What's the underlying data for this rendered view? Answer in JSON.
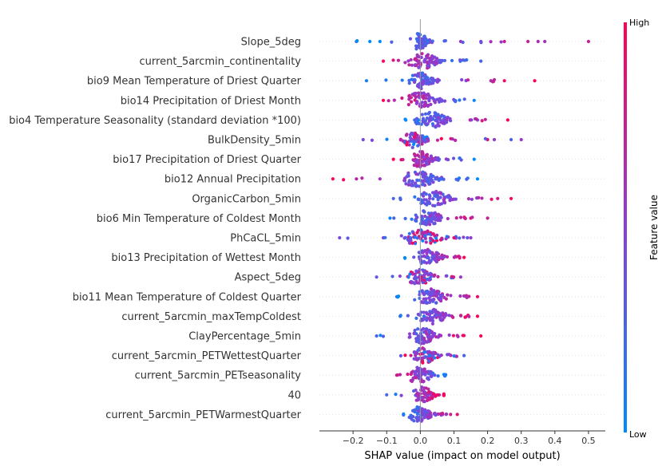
{
  "chart_data": {
    "type": "scatter",
    "subtype": "shap-beeswarm",
    "xlabel": "SHAP value (impact on model output)",
    "xlim": [
      -0.3,
      0.55
    ],
    "xticks": [
      -0.2,
      -0.1,
      0.0,
      0.1,
      0.2,
      0.3,
      0.4,
      0.5
    ],
    "xtick_labels": [
      "−0.2",
      "−0.1",
      "0.0",
      "0.1",
      "0.2",
      "0.3",
      "0.4",
      "0.5"
    ],
    "features": [
      {
        "name": "Slope_5deg",
        "left": -0.19,
        "right": 0.5,
        "core": [
          -0.04,
          0.05
        ],
        "tail_right": [
          0.12,
          0.18,
          0.25,
          0.32,
          0.35,
          0.37,
          0.5
        ],
        "tail_left": [
          -0.19,
          -0.15,
          -0.12
        ],
        "color_trend": "high-right"
      },
      {
        "name": "current_5arcmin_continentality",
        "left": -0.11,
        "right": 0.18,
        "core": [
          -0.06,
          0.09
        ],
        "tail_right": [
          0.18
        ],
        "tail_left": [
          -0.11
        ],
        "color_trend": "high-left"
      },
      {
        "name": "bio9 Mean Temperature of Driest Quarter",
        "left": -0.16,
        "right": 0.34,
        "core": [
          -0.05,
          0.07
        ],
        "tail_right": [
          0.21,
          0.25,
          0.34
        ],
        "tail_left": [
          -0.16
        ],
        "color_trend": "high-right"
      },
      {
        "name": "bio14 Precipitation of Driest Month",
        "left": -0.11,
        "right": 0.16,
        "core": [
          -0.07,
          0.09
        ],
        "tail_right": [
          0.16
        ],
        "tail_left": [
          -0.11
        ],
        "color_trend": "high-left"
      },
      {
        "name": "bio4 Temperature Seasonality (standard deviation *100)",
        "left": -0.05,
        "right": 0.26,
        "core": [
          -0.04,
          0.12
        ],
        "tail_right": [
          0.17,
          0.26
        ],
        "tail_left": [],
        "color_trend": "high-right"
      },
      {
        "name": "BulkDensity_5min",
        "left": -0.17,
        "right": 0.3,
        "core": [
          -0.07,
          0.05
        ],
        "tail_right": [
          0.2,
          0.22,
          0.27,
          0.3
        ],
        "tail_left": [
          -0.17
        ],
        "color_trend": "mixed"
      },
      {
        "name": "bio17 Precipitation of Driest Quarter",
        "left": -0.08,
        "right": 0.16,
        "core": [
          -0.05,
          0.07
        ],
        "tail_right": [
          0.16
        ],
        "tail_left": [
          -0.08
        ],
        "color_trend": "high-left"
      },
      {
        "name": "bio12 Annual Precipitation",
        "left": -0.26,
        "right": 0.17,
        "core": [
          -0.09,
          0.1
        ],
        "tail_right": [
          0.17
        ],
        "tail_left": [
          -0.26,
          -0.19,
          -0.12
        ],
        "color_trend": "high-left"
      },
      {
        "name": "OrganicCarbon_5min",
        "left": -0.08,
        "right": 0.27,
        "core": [
          -0.04,
          0.13
        ],
        "tail_right": [
          0.23,
          0.27
        ],
        "tail_left": [
          -0.08
        ],
        "color_trend": "high-right"
      },
      {
        "name": "bio6 Min Temperature of Coldest Month",
        "left": -0.09,
        "right": 0.2,
        "core": [
          -0.04,
          0.1
        ],
        "tail_right": [
          0.15,
          0.2
        ],
        "tail_left": [
          -0.09
        ],
        "color_trend": "high-right"
      },
      {
        "name": "PhCaCL_5min",
        "left": -0.24,
        "right": 0.15,
        "core": [
          -0.08,
          0.1
        ],
        "tail_right": [
          0.14,
          0.15
        ],
        "tail_left": [
          -0.24,
          -0.11
        ],
        "color_trend": "mixed"
      },
      {
        "name": "bio13 Precipitation of Wettest Month",
        "left": -0.05,
        "right": 0.13,
        "core": [
          -0.04,
          0.1
        ],
        "tail_right": [
          0.13
        ],
        "tail_left": [],
        "color_trend": "high-right"
      },
      {
        "name": "Aspect_5deg",
        "left": -0.13,
        "right": 0.12,
        "core": [
          -0.06,
          0.07
        ],
        "tail_right": [
          0.12
        ],
        "tail_left": [
          -0.13
        ],
        "color_trend": "mixed"
      },
      {
        "name": "bio11 Mean Temperature of Coldest Quarter",
        "left": -0.07,
        "right": 0.17,
        "core": [
          -0.04,
          0.11
        ],
        "tail_right": [
          0.17
        ],
        "tail_left": [
          -0.07
        ],
        "color_trend": "high-right"
      },
      {
        "name": "current_5arcmin_maxTempColdest",
        "left": -0.06,
        "right": 0.17,
        "core": [
          -0.03,
          0.11
        ],
        "tail_right": [
          0.17
        ],
        "tail_left": [
          -0.06
        ],
        "color_trend": "high-right"
      },
      {
        "name": "ClayPercentage_5min",
        "left": -0.13,
        "right": 0.18,
        "core": [
          -0.05,
          0.08
        ],
        "tail_right": [
          0.18
        ],
        "tail_left": [
          -0.13
        ],
        "color_trend": "high-right"
      },
      {
        "name": "current_5arcmin_PETWettestQuarter",
        "left": -0.06,
        "right": 0.13,
        "core": [
          -0.04,
          0.08
        ],
        "tail_right": [
          0.13
        ],
        "tail_left": [],
        "color_trend": "mixed"
      },
      {
        "name": "current_5arcmin_PETseasonality",
        "left": -0.07,
        "right": 0.08,
        "core": [
          -0.06,
          0.07
        ],
        "tail_right": [],
        "tail_left": [
          -0.07
        ],
        "color_trend": "high-left"
      },
      {
        "name": "40",
        "left": -0.1,
        "right": 0.07,
        "core": [
          -0.04,
          0.07
        ],
        "tail_right": [],
        "tail_left": [
          -0.1
        ],
        "color_trend": "high-right"
      },
      {
        "name": "current_5arcmin_PETWarmestQuarter",
        "left": -0.05,
        "right": 0.11,
        "core": [
          -0.05,
          0.06
        ],
        "tail_right": [
          0.09,
          0.11
        ],
        "tail_left": [],
        "color_trend": "high-right"
      }
    ],
    "colorbar": {
      "label": "Feature value",
      "high": "High",
      "low": "Low",
      "low_color": "#008bfb",
      "high_color": "#ff0052"
    },
    "grid": false,
    "legend": "colorbar right"
  }
}
